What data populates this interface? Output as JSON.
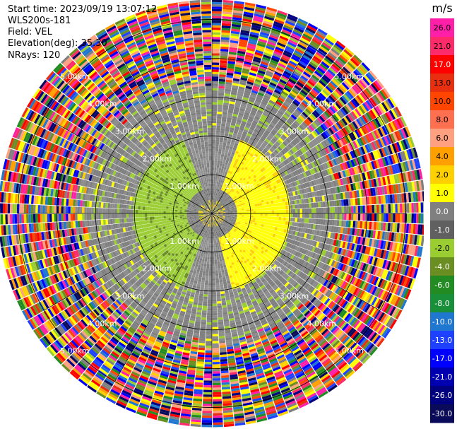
{
  "header": {
    "start_time": "Start time: 2023/09/19 13:07:12",
    "instrument": "WLS200s-181",
    "field": "Field: VEL",
    "elevation": "Elevation(deg): 35.30",
    "nrays": "NRays: 120"
  },
  "chart_data": {
    "type": "heatmap",
    "projection": "polar PPI",
    "field": "VEL",
    "elevation_deg": 35.3,
    "n_rays": 120,
    "range_rings_km": [
      1.0,
      2.0,
      3.0,
      4.0,
      5.0
    ],
    "ring_labels": [
      "1.00km",
      "2.00km",
      "3.00km",
      "4.00km",
      "5.00km"
    ],
    "spokes_deg": [
      0,
      30,
      60,
      90,
      120,
      150,
      180,
      210,
      240,
      270,
      300,
      330
    ],
    "colorbar": {
      "unit": "m/s",
      "ticks": [
        "26.0",
        "21.0",
        "17.0",
        "13.0",
        "10.0",
        "8.0",
        "6.0",
        "4.0",
        "2.0",
        "1.0",
        "0.0",
        "-1.0",
        "-2.0",
        "-4.0",
        "-6.0",
        "-8.0",
        "-10.0",
        "-13.0",
        "-17.0",
        "-21.0",
        "-26.0",
        "-30.0"
      ],
      "colors": [
        "#ff1fa8",
        "#ff2a6a",
        "#ff0000",
        "#e83010",
        "#ff4500",
        "#ff7050",
        "#ffa080",
        "#ffa000",
        "#ffd000",
        "#ffff00",
        "#808080",
        "#606060",
        "#9acd32",
        "#6b8e23",
        "#228b22",
        "#1a8f3a",
        "#1f77d0",
        "#1e40ff",
        "#0000ff",
        "#0000b0",
        "#000080",
        "#0a0a5a"
      ]
    },
    "pattern": {
      "inner_gray": [
        0,
        0.65
      ],
      "yellow_sector_deg": [
        20,
        165
      ],
      "green_sector_deg": [
        200,
        340
      ],
      "noise_start_km": 3.2
    }
  }
}
